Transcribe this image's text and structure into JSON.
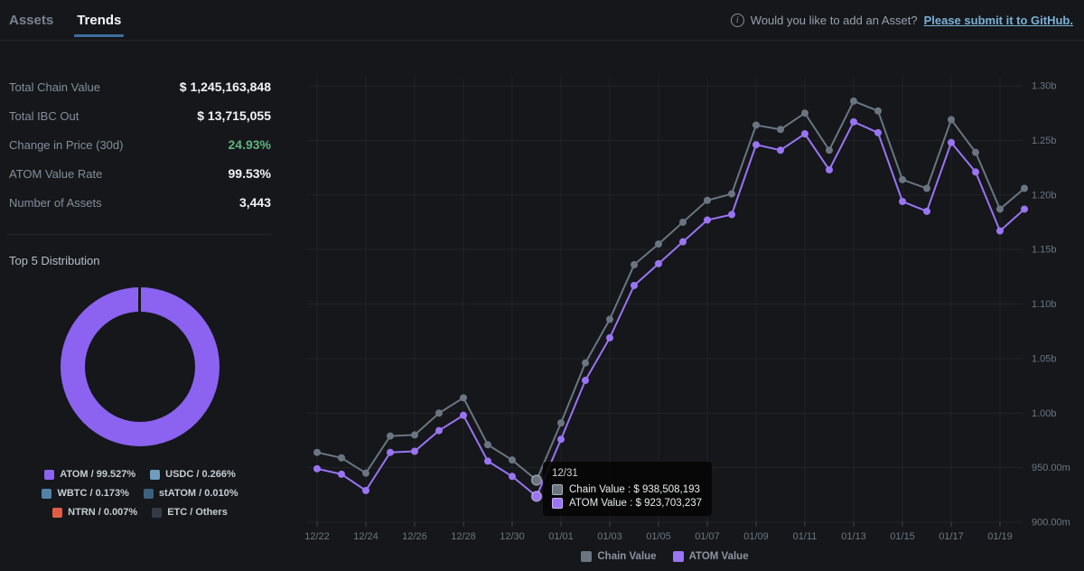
{
  "colors": {
    "chain": "#6b7582",
    "atom": "#9a74f3",
    "green": "#5fb37d",
    "link_blue": "#7cb1d6",
    "tab_underline": "#3e6f9e",
    "background": "#15171b"
  },
  "header": {
    "tabs": [
      {
        "label": "Assets",
        "active": false
      },
      {
        "label": "Trends",
        "active": true
      }
    ],
    "notice": {
      "icon": "info-icon",
      "icon_glyph": "i",
      "text": "Would you like to add an Asset?",
      "link": "Please submit it to GitHub."
    }
  },
  "stats": {
    "rows": [
      {
        "label": "Total Chain Value",
        "value": "$ 1,245,163,848"
      },
      {
        "label": "Total IBC Out",
        "value": "$ 13,715,055"
      },
      {
        "label": "Change in Price (30d)",
        "value": "24.93%",
        "color": "#5fb37d"
      },
      {
        "label": "ATOM Value Rate",
        "value": "99.53%"
      },
      {
        "label": "Number of Assets",
        "value": "3,443"
      }
    ]
  },
  "distribution": {
    "title": "Top 5 Distribution",
    "slices": [
      {
        "name": "ATOM",
        "pct": 99.527,
        "color": "#8b63f0"
      },
      {
        "name": "USDC",
        "pct": 0.266,
        "color": "#6d9cbd"
      },
      {
        "name": "WBTC",
        "pct": 0.173,
        "color": "#5383a6"
      },
      {
        "name": "stATOM",
        "pct": 0.01,
        "color": "#3c617d"
      },
      {
        "name": "NTRN",
        "pct": 0.007,
        "color": "#e25c44"
      },
      {
        "name": "ETC",
        "pct": 0.017,
        "color": "#343b46"
      }
    ],
    "legend": [
      {
        "label": "ATOM / 99.527%",
        "color": "#8b63f0"
      },
      {
        "label": "USDC / 0.266%",
        "color": "#6d9cbd"
      },
      {
        "label": "WBTC / 0.173%",
        "color": "#5383a6"
      },
      {
        "label": "stATOM / 0.010%",
        "color": "#3c617d"
      },
      {
        "label": "NTRN / 0.007%",
        "color": "#e25c44"
      },
      {
        "label": "ETC / Others",
        "color": "#343b46"
      }
    ]
  },
  "chart_data": {
    "type": "line",
    "title": "",
    "y_unit": "USD millions",
    "ylim": [
      900,
      1300
    ],
    "grid": true,
    "legend_position": "bottom",
    "x": [
      "12/22",
      "12/23",
      "12/24",
      "12/25",
      "12/26",
      "12/27",
      "12/28",
      "12/29",
      "12/30",
      "12/31",
      "01/01",
      "01/02",
      "01/03",
      "01/04",
      "01/05",
      "01/06",
      "01/07",
      "01/08",
      "01/09",
      "01/10",
      "01/11",
      "01/12",
      "01/13",
      "01/14",
      "01/15",
      "01/16",
      "01/17",
      "01/18",
      "01/19",
      "01/20"
    ],
    "x_tick_step": 2,
    "y_ticks": [
      {
        "value": 1300,
        "label": "1.30b"
      },
      {
        "value": 1250,
        "label": "1.25b"
      },
      {
        "value": 1200,
        "label": "1.20b"
      },
      {
        "value": 1150,
        "label": "1.15b"
      },
      {
        "value": 1100,
        "label": "1.10b"
      },
      {
        "value": 1050,
        "label": "1.05b"
      },
      {
        "value": 1000,
        "label": "1.00b"
      },
      {
        "value": 950,
        "label": "950.00m"
      },
      {
        "value": 900,
        "label": "900.00m"
      }
    ],
    "series": [
      {
        "name": "Chain Value",
        "color": "#6b7582",
        "values": [
          964,
          959,
          945,
          979,
          980,
          1000,
          1014,
          971,
          957,
          938.5,
          991,
          1046,
          1086,
          1136,
          1155,
          1175,
          1195,
          1201,
          1264,
          1260,
          1275,
          1241,
          1286,
          1277,
          1214,
          1206,
          1269,
          1239,
          1187,
          1206
        ]
      },
      {
        "name": "ATOM Value",
        "color": "#9a74f3",
        "values": [
          949,
          944,
          929,
          964,
          965,
          984,
          998,
          956,
          942,
          923.7,
          976,
          1030,
          1069,
          1117,
          1137,
          1157,
          1177,
          1182,
          1246,
          1241,
          1256,
          1223,
          1267,
          1257,
          1194,
          1185,
          1248,
          1221,
          1167,
          1187
        ]
      }
    ],
    "highlight": {
      "index": 9,
      "date": "12/31",
      "chain_value_usd": 938508193,
      "atom_value_usd": 923703237
    }
  },
  "tooltip": {
    "date": "12/31",
    "rows": [
      {
        "text": "Chain Value : $ 938,508,193",
        "color": "#6b7582"
      },
      {
        "text": "ATOM Value : $ 923,703,237",
        "color": "#9a74f3"
      }
    ]
  },
  "chart_legend": [
    {
      "label": "Chain Value",
      "color": "#6b7582"
    },
    {
      "label": "ATOM Value",
      "color": "#9a74f3"
    }
  ]
}
